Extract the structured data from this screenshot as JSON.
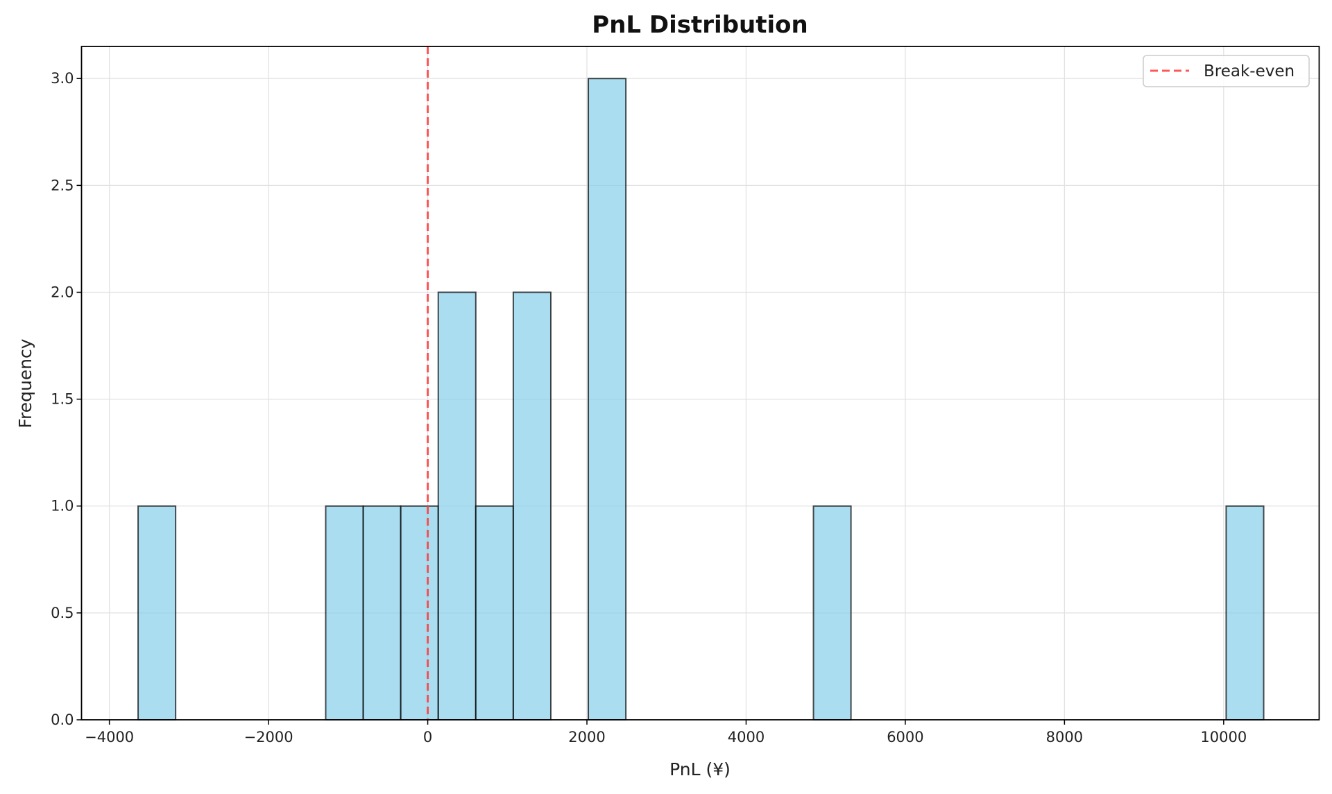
{
  "chart_data": {
    "type": "bar",
    "subtype": "histogram",
    "title": "PnL Distribution",
    "xlabel": "PnL (¥)",
    "ylabel": "Frequency",
    "xlim": [
      -4350,
      11200
    ],
    "ylim": [
      0,
      3.15
    ],
    "xticks": [
      -4000,
      -2000,
      0,
      2000,
      4000,
      6000,
      8000,
      10000
    ],
    "xtick_labels": [
      "−4000",
      "−2000",
      "0",
      "2000",
      "4000",
      "6000",
      "8000",
      "10000"
    ],
    "yticks": [
      0,
      0.5,
      1,
      1.5,
      2,
      2.5,
      3
    ],
    "ytick_labels": [
      "0.0",
      "0.5",
      "1.0",
      "1.5",
      "2.0",
      "2.5",
      "3.0"
    ],
    "bin_start": -3639,
    "bin_end": 10503,
    "counts": [
      1,
      0,
      0,
      0,
      0,
      1,
      1,
      1,
      2,
      1,
      2,
      0,
      3,
      0,
      0,
      0,
      0,
      0,
      1,
      0,
      0,
      0,
      0,
      0,
      0,
      0,
      0,
      0,
      0,
      1
    ],
    "bar_color": "#87CEEB",
    "bar_edge_color": "#000000",
    "grid": true,
    "reference_line": {
      "x": 0,
      "label": "Break-even",
      "color": "#ff3b3b",
      "style": "dashed"
    },
    "legend": {
      "position": "top-right",
      "entries": [
        "Break-even"
      ]
    }
  }
}
